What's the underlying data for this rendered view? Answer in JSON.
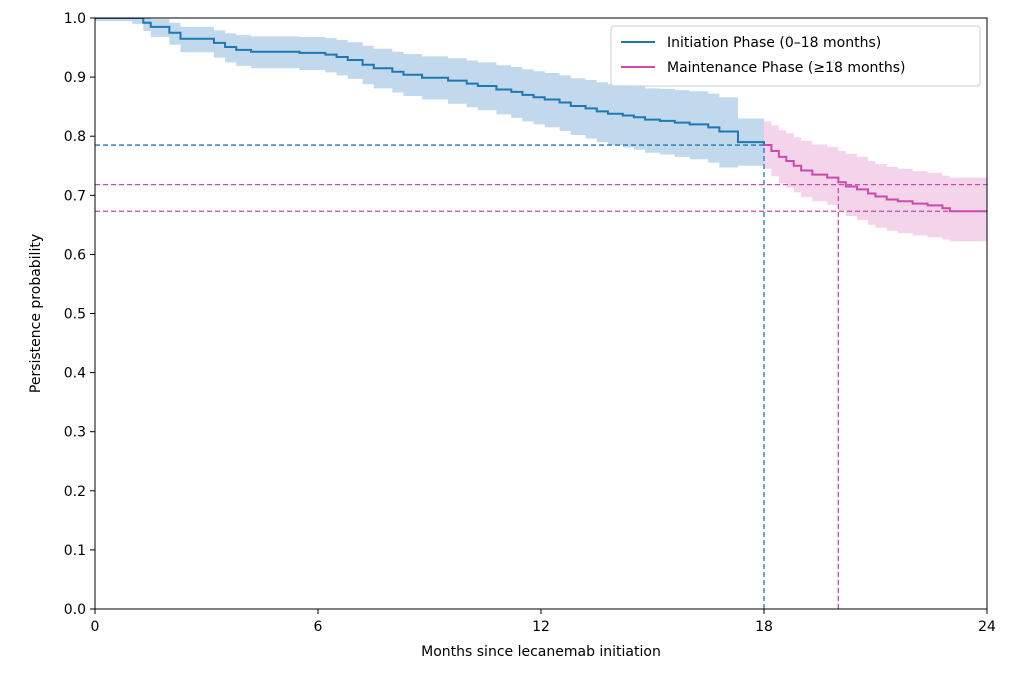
{
  "chart_data": {
    "type": "line",
    "title": "",
    "xlabel": "Months since lecanemab initiation",
    "ylabel": "Persistence probability",
    "xlim": [
      0,
      24
    ],
    "ylim": [
      0.0,
      1.0
    ],
    "xticks": [
      "0",
      "6",
      "12",
      "18",
      "24"
    ],
    "xtick_values": [
      0,
      6,
      12,
      18,
      24
    ],
    "yticks": [
      "0.0",
      "0.1",
      "0.2",
      "0.3",
      "0.4",
      "0.5",
      "0.6",
      "0.7",
      "0.8",
      "0.9",
      "1.0"
    ],
    "ytick_values": [
      0.0,
      0.1,
      0.2,
      0.3,
      0.4,
      0.5,
      0.6,
      0.7,
      0.8,
      0.9,
      1.0
    ],
    "grid": false,
    "legend_position": "top-right",
    "series": [
      {
        "name": "Initiation Phase (0–18 months)",
        "color": "#1f77b4",
        "band_color": "#aecbe6",
        "step": true,
        "x": [
          0,
          1.0,
          1.3,
          1.5,
          2.0,
          2.3,
          3.2,
          3.5,
          3.8,
          4.2,
          5.5,
          6.2,
          6.5,
          6.8,
          7.2,
          7.5,
          8.0,
          8.3,
          8.8,
          9.5,
          10.0,
          10.3,
          10.8,
          11.2,
          11.5,
          11.8,
          12.1,
          12.5,
          12.8,
          13.2,
          13.5,
          13.8,
          14.2,
          14.5,
          14.8,
          15.2,
          15.6,
          16.0,
          16.5,
          16.8,
          17.3,
          18.0
        ],
        "y": [
          1.0,
          1.0,
          0.992,
          0.985,
          0.975,
          0.965,
          0.958,
          0.951,
          0.946,
          0.943,
          0.941,
          0.938,
          0.934,
          0.929,
          0.921,
          0.915,
          0.909,
          0.904,
          0.899,
          0.894,
          0.889,
          0.885,
          0.879,
          0.875,
          0.87,
          0.866,
          0.862,
          0.857,
          0.851,
          0.847,
          0.842,
          0.838,
          0.835,
          0.832,
          0.828,
          0.826,
          0.823,
          0.82,
          0.815,
          0.808,
          0.79,
          0.785
        ],
        "ci_lower": [
          0.995,
          0.99,
          0.978,
          0.968,
          0.955,
          0.942,
          0.933,
          0.925,
          0.919,
          0.915,
          0.912,
          0.908,
          0.903,
          0.897,
          0.888,
          0.881,
          0.874,
          0.868,
          0.862,
          0.855,
          0.849,
          0.844,
          0.837,
          0.831,
          0.825,
          0.82,
          0.815,
          0.809,
          0.802,
          0.796,
          0.79,
          0.785,
          0.781,
          0.777,
          0.772,
          0.769,
          0.765,
          0.761,
          0.755,
          0.747,
          0.75,
          0.745
        ],
        "ci_upper": [
          1.0,
          1.0,
          1.0,
          0.998,
          0.992,
          0.985,
          0.979,
          0.974,
          0.971,
          0.969,
          0.968,
          0.966,
          0.963,
          0.959,
          0.953,
          0.948,
          0.943,
          0.939,
          0.935,
          0.932,
          0.928,
          0.925,
          0.92,
          0.917,
          0.913,
          0.91,
          0.907,
          0.903,
          0.898,
          0.895,
          0.891,
          0.888,
          0.886,
          0.884,
          0.881,
          0.88,
          0.878,
          0.876,
          0.872,
          0.866,
          0.83,
          0.825
        ]
      },
      {
        "name": "Maintenance Phase (≥18 months)",
        "color": "#cc4aaa",
        "band_color": "#f0c6e4",
        "step": true,
        "x": [
          18.0,
          18.2,
          18.4,
          18.6,
          18.8,
          19.0,
          19.3,
          19.7,
          20.0,
          20.2,
          20.5,
          20.8,
          21.0,
          21.3,
          21.6,
          22.0,
          22.4,
          22.8,
          23.0,
          24.0
        ],
        "y": [
          0.785,
          0.775,
          0.765,
          0.758,
          0.75,
          0.742,
          0.735,
          0.73,
          0.722,
          0.715,
          0.71,
          0.703,
          0.698,
          0.693,
          0.69,
          0.686,
          0.683,
          0.678,
          0.673,
          0.673
        ],
        "ci_lower": [
          0.745,
          0.732,
          0.72,
          0.713,
          0.705,
          0.697,
          0.69,
          0.684,
          0.675,
          0.665,
          0.658,
          0.65,
          0.645,
          0.64,
          0.636,
          0.632,
          0.629,
          0.625,
          0.622,
          0.622
        ],
        "ci_upper": [
          0.825,
          0.818,
          0.81,
          0.805,
          0.798,
          0.792,
          0.786,
          0.782,
          0.775,
          0.77,
          0.765,
          0.758,
          0.753,
          0.748,
          0.745,
          0.741,
          0.738,
          0.733,
          0.73,
          0.73
        ]
      }
    ],
    "reference_lines": [
      {
        "orientation": "horizontal",
        "value": 0.785,
        "x_end": 18,
        "color": "#1f77b4",
        "style": "dashed"
      },
      {
        "orientation": "vertical",
        "value": 18,
        "y_end": 0.785,
        "color": "#1f77b4",
        "style": "dashed"
      },
      {
        "orientation": "horizontal",
        "value": 0.718,
        "x_end": 24,
        "color": "#cc4aaa",
        "style": "dashed"
      },
      {
        "orientation": "horizontal",
        "value": 0.673,
        "x_end": 24,
        "color": "#cc4aaa",
        "style": "dashed"
      },
      {
        "orientation": "vertical",
        "value": 20.0,
        "y_end": 0.718,
        "color": "#cc4aaa",
        "style": "dashed"
      }
    ]
  }
}
